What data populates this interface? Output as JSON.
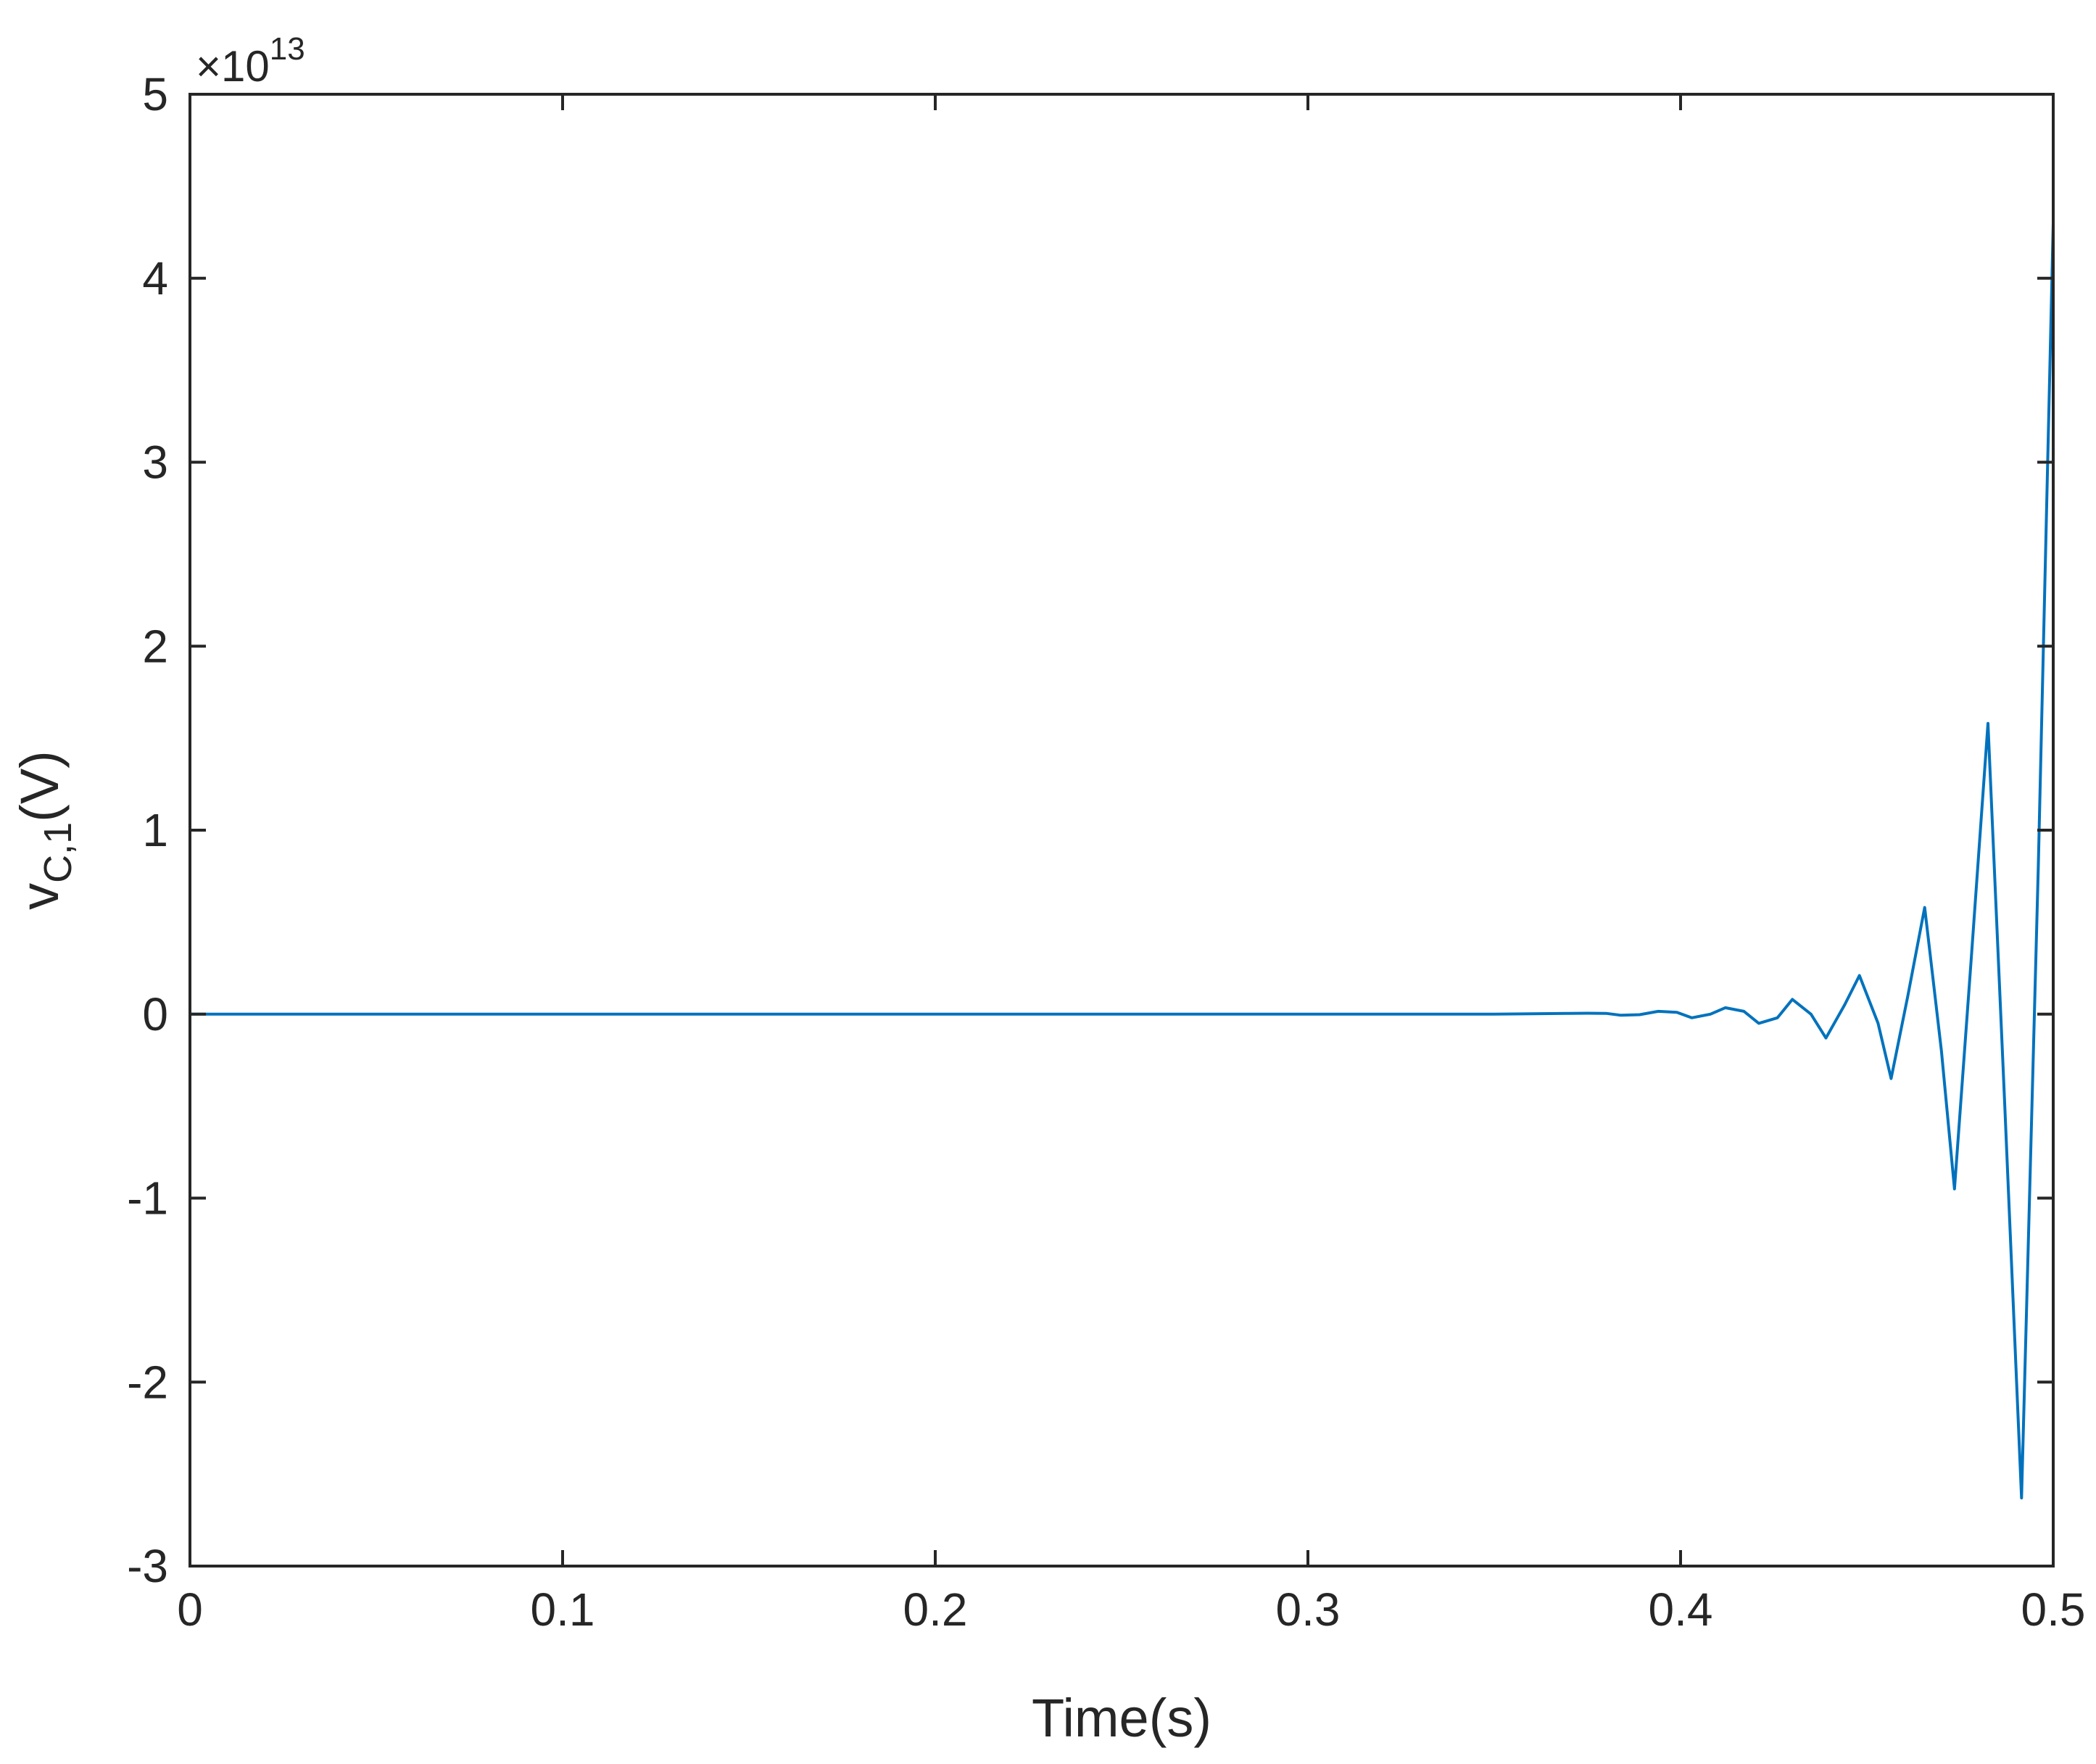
{
  "chart_data": {
    "type": "line",
    "title": "",
    "xlabel": "Time(s)",
    "ylabel": {
      "main": "v",
      "subscript": "C,1",
      "unit": "(V)"
    },
    "xlim": [
      0,
      0.5
    ],
    "ylim": [
      -3,
      5
    ],
    "y_scale_factor": {
      "base": "×10",
      "exponent": "13"
    },
    "x_ticks": [
      "0",
      "0.1",
      "0.2",
      "0.3",
      "0.4",
      "0.5"
    ],
    "y_ticks": [
      "-3",
      "-2",
      "-1",
      "0",
      "1",
      "2",
      "3",
      "4",
      "5"
    ],
    "grid": false,
    "line_color": "#0072BD",
    "series": [
      {
        "x": [
          0,
          0.05,
          0.1,
          0.15,
          0.2,
          0.25,
          0.3,
          0.35,
          0.36,
          0.37,
          0.375,
          0.38,
          0.384,
          0.389,
          0.394,
          0.399,
          0.403,
          0.408,
          0.412,
          0.417,
          0.421,
          0.426,
          0.43,
          0.435,
          0.439,
          0.444,
          0.448,
          0.453,
          0.4565,
          0.461,
          0.4655,
          0.47,
          0.4735,
          0.478,
          0.4825,
          0.487,
          0.4915,
          0.496,
          0.5
        ],
        "y": [
          0,
          0,
          0,
          0,
          0,
          0,
          0,
          0,
          0.002,
          0.004,
          0.005,
          0.004,
          -0.006,
          -0.003,
          0.015,
          0.01,
          -0.02,
          0.0,
          0.035,
          0.015,
          -0.05,
          -0.02,
          0.08,
          0.0,
          -0.13,
          0.05,
          0.21,
          -0.05,
          -0.35,
          0.1,
          0.58,
          -0.2,
          -0.95,
          0.3,
          1.58,
          -0.5,
          -2.63,
          0.8,
          4.3
        ]
      }
    ]
  }
}
